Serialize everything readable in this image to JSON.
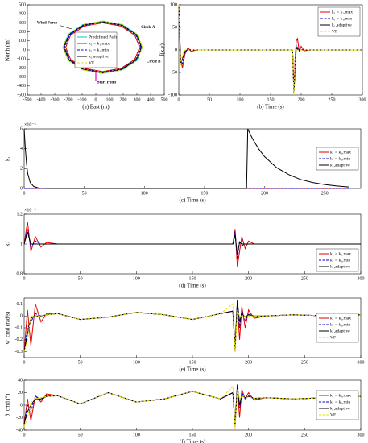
{
  "chart_data": [
    {
      "type": "line",
      "xlabel": "(a) East (m)",
      "ylabel": "North (m)",
      "xlim": [
        -500,
        500
      ],
      "ylim": [
        -500,
        500
      ],
      "xticks": [
        -500,
        -400,
        -300,
        -200,
        -100,
        0,
        100,
        200,
        300,
        400,
        500
      ],
      "yticks": [
        -500,
        -400,
        -300,
        -200,
        -100,
        0,
        100,
        200,
        300,
        400,
        500
      ],
      "grid": false,
      "legend": "center",
      "annotations": [
        "Wind Force",
        "Circle A",
        "Circle B",
        "Start Point"
      ],
      "series": [
        {
          "name": "Predefined Path",
          "color": "#00c8c8",
          "style": "solid",
          "x": [
            340,
            301,
            195,
            50,
            -95,
            -201,
            -240,
            -201,
            -95,
            50,
            195,
            301,
            340
          ],
          "values": [
            30,
            175,
            281,
            320,
            281,
            175,
            30,
            -115,
            -221,
            -260,
            -221,
            -115,
            30
          ]
        },
        {
          "name": "k₁ = k₁,max",
          "color": "#e00000",
          "style": "solid",
          "x": [
            320,
            284,
            185,
            50,
            -85,
            -184,
            -220,
            -184,
            -85,
            50,
            185,
            284,
            320
          ],
          "values": [
            30,
            165,
            264,
            300,
            264,
            165,
            30,
            -105,
            -204,
            -240,
            -204,
            -105,
            30
          ]
        },
        {
          "name": "k₁ = k₁,min",
          "color": "#0000cc",
          "style": "dashed",
          "x": [
            328,
            291,
            189,
            50,
            -89,
            -191,
            -228,
            -191,
            -89,
            50,
            189,
            291,
            328
          ],
          "values": [
            30,
            169,
            271,
            308,
            271,
            169,
            30,
            -109,
            -211,
            -248,
            -211,
            -109,
            30
          ]
        },
        {
          "name": "k₁,adaptive",
          "color": "#000000",
          "style": "solid",
          "x": [
            334,
            296,
            192,
            50,
            -92,
            -196,
            -234,
            -196,
            -92,
            50,
            192,
            296,
            334
          ],
          "values": [
            30,
            172,
            276,
            314,
            276,
            172,
            30,
            -112,
            -216,
            -254,
            -216,
            -112,
            30
          ]
        },
        {
          "name": "VF",
          "color": "#e0e000",
          "style": "dashed",
          "x": [
            340,
            301,
            195,
            50,
            -95,
            -201,
            -240,
            -201,
            -95,
            50,
            195,
            301,
            340
          ],
          "values": [
            30,
            175,
            281,
            320,
            281,
            175,
            30,
            -115,
            -221,
            -260,
            -221,
            -115,
            30
          ]
        }
      ]
    },
    {
      "type": "line",
      "xlabel": "(b) Time (s)",
      "ylabel": "f(x,y)",
      "xlim": [
        0,
        300
      ],
      "ylim": [
        -100,
        100
      ],
      "xticks": [
        0,
        50,
        100,
        150,
        200,
        250,
        300
      ],
      "yticks": [
        -100,
        -50,
        0,
        50,
        100
      ],
      "grid": false,
      "legend": "upper right",
      "x": [
        0,
        3,
        6,
        10,
        15,
        20,
        30,
        50,
        75,
        100,
        125,
        150,
        175,
        186,
        188,
        190,
        192,
        194,
        197,
        200,
        205,
        215,
        240,
        270,
        300
      ],
      "series": [
        {
          "name": "k₁ = k₁,max",
          "color": "#e00000",
          "style": "solid",
          "values": [
            100,
            -20,
            -40,
            -10,
            5,
            -3,
            0,
            0,
            0,
            0,
            0,
            0,
            0,
            0,
            -90,
            -20,
            20,
            25,
            -5,
            8,
            -2,
            0,
            0,
            0,
            0
          ]
        },
        {
          "name": "k₁ = k₁,min",
          "color": "#0000cc",
          "style": "dashed",
          "values": [
            100,
            -25,
            -30,
            -5,
            2,
            0,
            0,
            0,
            0,
            0,
            0,
            0,
            0,
            0,
            -95,
            -40,
            10,
            5,
            -2,
            1,
            0,
            0,
            0,
            0,
            0
          ]
        },
        {
          "name": "k₁,adaptive",
          "color": "#000000",
          "style": "solid",
          "values": [
            100,
            -30,
            -20,
            -3,
            0,
            0,
            0,
            0,
            0,
            0,
            0,
            0,
            0,
            0,
            -95,
            -50,
            5,
            2,
            0,
            0,
            0,
            0,
            0,
            0,
            0
          ]
        },
        {
          "name": "VF",
          "color": "#e0e000",
          "style": "dashed",
          "values": [
            100,
            -35,
            -10,
            0,
            0,
            0,
            0,
            0,
            0,
            0,
            0,
            0,
            0,
            0,
            -100,
            -30,
            0,
            0,
            0,
            0,
            0,
            0,
            0,
            0,
            0
          ]
        }
      ]
    },
    {
      "type": "line",
      "xlabel": "(c) Time (s)",
      "ylabel": "k₁",
      "exponent": "×10⁻⁴",
      "xlim": [
        0,
        280
      ],
      "ylim": [
        0,
        6
      ],
      "xticks": [
        0,
        50,
        100,
        150,
        200,
        250
      ],
      "yticks": [
        0,
        2,
        4,
        6
      ],
      "grid": false,
      "legend": "right",
      "x": [
        0,
        1,
        2,
        3,
        5,
        8,
        12,
        20,
        50,
        100,
        150,
        185,
        186,
        190,
        195,
        200,
        210,
        220,
        230,
        240,
        250,
        260,
        270
      ],
      "series": [
        {
          "name": "k₁ = k₁,max",
          "color": "#e00000",
          "style": "solid",
          "values": [
            0,
            0,
            0,
            0,
            0,
            0,
            0,
            0,
            0,
            0,
            0,
            0,
            0,
            0,
            0,
            0,
            0,
            0,
            0,
            0,
            0,
            0,
            0
          ]
        },
        {
          "name": "k₁ = k₁,min",
          "color": "#0000cc",
          "style": "dashed",
          "values": [
            0,
            0,
            0,
            0,
            0,
            0,
            0,
            0,
            0,
            0,
            0,
            0,
            0,
            0,
            0,
            0,
            0,
            0,
            0,
            0,
            0,
            0,
            0
          ]
        },
        {
          "name": "k₁,adaptive",
          "color": "#000000",
          "style": "solid",
          "values": [
            6,
            4,
            2.5,
            1.5,
            0.6,
            0.2,
            0.05,
            0,
            0,
            0,
            0,
            0,
            6,
            5,
            4,
            3.2,
            2.1,
            1.4,
            0.9,
            0.6,
            0.4,
            0.25,
            0.15
          ]
        }
      ]
    },
    {
      "type": "line",
      "xlabel": "(d) Time (s)",
      "ylabel": "k₂",
      "exponent": "×10⁻⁴",
      "xlim": [
        0,
        300
      ],
      "ylim": [
        0.8,
        1.2
      ],
      "xticks": [
        0,
        50,
        100,
        150,
        200,
        250,
        300
      ],
      "yticks": [
        0.8,
        1,
        1.2
      ],
      "grid": false,
      "legend": "lower right",
      "x": [
        0,
        3,
        6,
        10,
        15,
        20,
        30,
        50,
        75,
        100,
        125,
        150,
        175,
        186,
        188,
        190,
        192,
        194,
        197,
        200,
        205,
        215,
        240,
        270,
        300
      ],
      "series": [
        {
          "name": "k₁ = k₁,max",
          "color": "#e00000",
          "style": "solid",
          "values": [
            1,
            1.15,
            0.95,
            1.05,
            0.98,
            1.01,
            1,
            1,
            1,
            1,
            1,
            1,
            1,
            1,
            1.1,
            0.85,
            0.95,
            1.05,
            0.97,
            1.02,
            1,
            1,
            1,
            1,
            1
          ]
        },
        {
          "name": "k₁ = k₁,min",
          "color": "#0000cc",
          "style": "dashed",
          "values": [
            1,
            1.1,
            0.98,
            1.02,
            1,
            1,
            1,
            1,
            1,
            1,
            1,
            1,
            1,
            1,
            1.08,
            0.9,
            1.02,
            0.99,
            1,
            1,
            1,
            1,
            1,
            1,
            1
          ]
        },
        {
          "name": "k₁,adaptive",
          "color": "#000000",
          "style": "solid",
          "values": [
            1,
            1.08,
            1,
            1,
            1,
            1,
            1,
            1,
            1,
            1,
            1,
            1,
            1,
            1,
            1.06,
            0.93,
            1.01,
            1,
            1,
            1,
            1,
            1,
            1,
            1,
            1
          ]
        }
      ]
    },
    {
      "type": "line",
      "xlabel": "(e) Time (s)",
      "ylabel": "w_cmd (rad/s)",
      "xlim": [
        0,
        300
      ],
      "ylim": [
        -0.35,
        0.15
      ],
      "xticks": [
        0,
        50,
        100,
        150,
        200,
        250,
        300
      ],
      "yticks": [
        -0.3,
        -0.2,
        -0.1,
        0,
        0.1
      ],
      "grid": false,
      "legend": "right",
      "x": [
        0,
        3,
        6,
        10,
        15,
        20,
        30,
        50,
        75,
        100,
        125,
        150,
        175,
        186,
        188,
        190,
        192,
        194,
        197,
        200,
        205,
        215,
        240,
        270,
        300
      ],
      "series": [
        {
          "name": "k₁ = k₁,max",
          "color": "#e00000",
          "style": "solid",
          "values": [
            -0.3,
            0.05,
            -0.25,
            0.1,
            -0.05,
            0.02,
            0.02,
            -0.03,
            -0.01,
            0.03,
            0.01,
            -0.03,
            0.02,
            0.04,
            -0.3,
            0.1,
            -0.2,
            0.08,
            -0.1,
            0.05,
            -0.02,
            0,
            0.01,
            0,
            0.01
          ]
        },
        {
          "name": "k₁ = k₁,min",
          "color": "#0000cc",
          "style": "dashed",
          "values": [
            -0.3,
            -0.1,
            -0.05,
            0.02,
            0,
            0.01,
            0.02,
            -0.03,
            -0.01,
            0.03,
            0.01,
            -0.03,
            0.02,
            0.04,
            -0.28,
            0.12,
            -0.1,
            0.05,
            -0.04,
            0.02,
            -0.01,
            0,
            0.01,
            0,
            0.01
          ]
        },
        {
          "name": "k₁,adaptive",
          "color": "#000000",
          "style": "solid",
          "values": [
            -0.3,
            -0.15,
            -0.02,
            0,
            0,
            0.01,
            0.02,
            -0.03,
            -0.01,
            0.03,
            0.01,
            -0.03,
            0.02,
            0.04,
            -0.25,
            0.13,
            -0.05,
            0.02,
            -0.01,
            0.01,
            0,
            0,
            0.01,
            0,
            0.01
          ]
        },
        {
          "name": "VF",
          "color": "#e0e000",
          "style": "dashed",
          "values": [
            -0.3,
            -0.2,
            0,
            0,
            0,
            0.01,
            0.02,
            -0.03,
            -0.01,
            0.03,
            0.01,
            -0.03,
            0.02,
            0.1,
            -0.3,
            0.05,
            0,
            0,
            0,
            0,
            0,
            0,
            0.01,
            0,
            0.01
          ]
        }
      ]
    },
    {
      "type": "line",
      "xlabel": "(f) Time (s)",
      "ylabel": "θ_cmd (°)",
      "xlim": [
        0,
        300
      ],
      "ylim": [
        -40,
        40
      ],
      "xticks": [
        0,
        50,
        100,
        150,
        200,
        250,
        300
      ],
      "yticks": [
        -40,
        -20,
        0,
        20,
        40
      ],
      "grid": false,
      "legend": "right",
      "x": [
        0,
        3,
        6,
        10,
        15,
        20,
        30,
        50,
        75,
        100,
        125,
        150,
        175,
        186,
        188,
        190,
        192,
        194,
        197,
        200,
        205,
        215,
        240,
        270,
        300
      ],
      "series": [
        {
          "name": "k₁ = k₁,max",
          "color": "#e00000",
          "style": "solid",
          "values": [
            -30,
            10,
            -25,
            15,
            5,
            18,
            15,
            2,
            20,
            5,
            10,
            22,
            10,
            20,
            -35,
            30,
            -20,
            25,
            10,
            20,
            8,
            12,
            10,
            12,
            14
          ]
        },
        {
          "name": "k₁ = k₁,min",
          "color": "#0000cc",
          "style": "dashed",
          "values": [
            -30,
            0,
            -10,
            15,
            8,
            15,
            15,
            2,
            20,
            5,
            10,
            22,
            10,
            20,
            -33,
            30,
            -5,
            20,
            10,
            15,
            10,
            12,
            10,
            12,
            14
          ]
        },
        {
          "name": "k₁,adaptive",
          "color": "#000000",
          "style": "solid",
          "values": [
            -30,
            -10,
            0,
            10,
            10,
            14,
            15,
            2,
            20,
            5,
            10,
            22,
            10,
            20,
            -30,
            33,
            0,
            15,
            12,
            14,
            11,
            12,
            10,
            12,
            14
          ]
        },
        {
          "name": "VF",
          "color": "#e0e000",
          "style": "dashed",
          "values": [
            -35,
            -20,
            5,
            10,
            12,
            14,
            15,
            2,
            20,
            5,
            10,
            22,
            10,
            30,
            -38,
            25,
            10,
            14,
            12,
            13,
            11,
            12,
            10,
            12,
            14
          ]
        }
      ]
    }
  ]
}
